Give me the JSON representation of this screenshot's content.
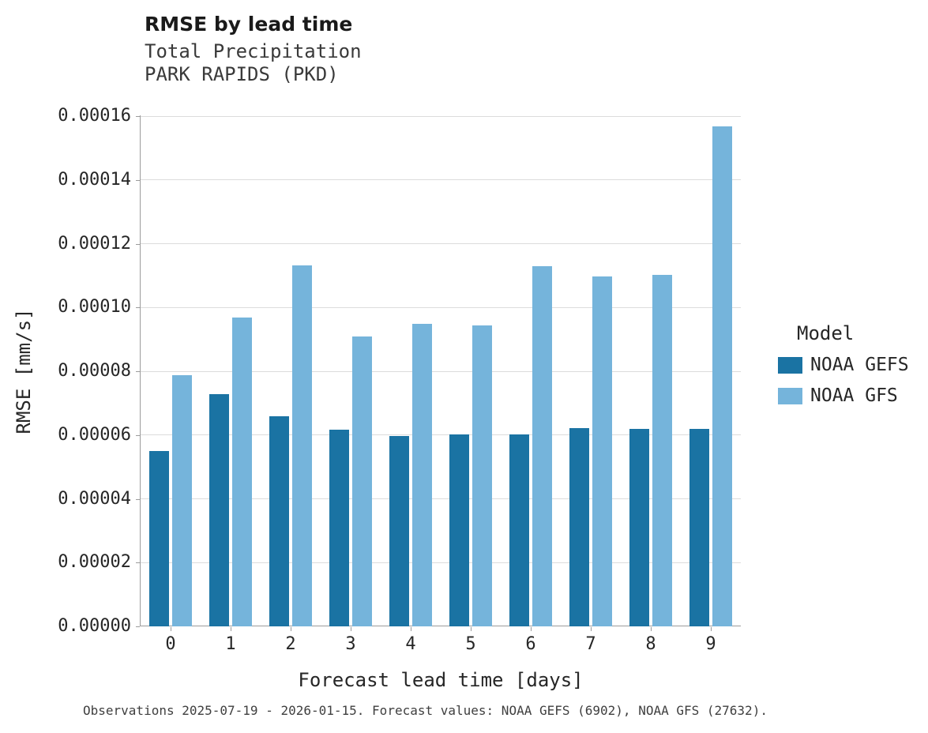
{
  "caption": "Observations 2025-07-19 - 2026-01-15. Forecast values: NOAA GEFS (6902), NOAA GFS (27632).",
  "chart_data": {
    "type": "bar",
    "title": "RMSE by lead time",
    "subtitle": [
      "Total Precipitation",
      "PARK RAPIDS (PKD)"
    ],
    "xlabel": "Forecast lead time [days]",
    "ylabel": "RMSE [mm/s]",
    "categories": [
      "0",
      "1",
      "2",
      "3",
      "4",
      "5",
      "6",
      "7",
      "8",
      "9"
    ],
    "series": [
      {
        "name": "NOAA GEFS",
        "color": "#1a73a3",
        "values": [
          5.5e-05,
          7.28e-05,
          6.6e-05,
          6.16e-05,
          5.98e-05,
          6.01e-05,
          6.02e-05,
          6.22e-05,
          6.2e-05,
          6.18e-05
        ]
      },
      {
        "name": "NOAA GFS",
        "color": "#75b4db",
        "values": [
          7.88e-05,
          9.68e-05,
          0.0001132,
          9.1e-05,
          9.48e-05,
          9.44e-05,
          0.0001129,
          0.0001097,
          0.0001101,
          0.0001568
        ]
      }
    ],
    "ylim": [
      0,
      0.00016
    ],
    "ytick_step": 2e-05,
    "ytick_decimals": 5,
    "grid": "horizontal",
    "legend_title": "Model",
    "legend_position": "right"
  }
}
